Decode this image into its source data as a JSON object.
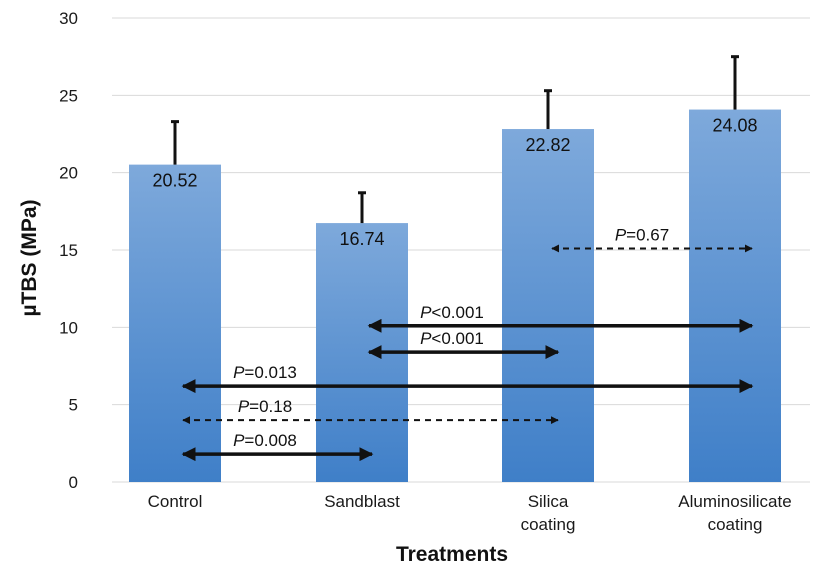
{
  "chart_data": {
    "type": "bar",
    "xlabel": "Treatments",
    "ylabel": "µTBS (MPa)",
    "ylim": [
      0,
      30
    ],
    "yticks": [
      0,
      5,
      10,
      15,
      20,
      25,
      30
    ],
    "grid": true,
    "categories": [
      [
        "Control"
      ],
      [
        "Sandblast"
      ],
      [
        "Silica",
        "coating"
      ],
      [
        "Aluminosilicate",
        "coating"
      ]
    ],
    "values": [
      20.52,
      16.74,
      22.82,
      24.08
    ],
    "value_labels": [
      "20.52",
      "16.74",
      "22.82",
      "24.08"
    ],
    "error_upper": [
      23.3,
      18.7,
      25.3,
      27.5
    ],
    "comparisons": [
      {
        "label_prefix": "P",
        "label_rest": "=0.67",
        "from": 2,
        "to": 3,
        "y": 15.1,
        "style": "dashed"
      },
      {
        "label_prefix": "P",
        "label_rest": "<0.001",
        "from": 1,
        "to": 3,
        "y": 10.1,
        "style": "solid"
      },
      {
        "label_prefix": "P",
        "label_rest": "<0.001",
        "from": 1,
        "to": 2,
        "y": 8.4,
        "style": "solid"
      },
      {
        "label_prefix": "P",
        "label_rest": "=0.013",
        "from": 0,
        "to": 3,
        "y": 6.2,
        "style": "solid"
      },
      {
        "label_prefix": "P",
        "label_rest": "=0.18",
        "from": 0,
        "to": 2,
        "y": 4.0,
        "style": "dashed"
      },
      {
        "label_prefix": "P",
        "label_rest": "=0.008",
        "from": 0,
        "to": 1,
        "y": 1.8,
        "style": "solid"
      }
    ],
    "bar_color_top": "#7ea9db",
    "bar_color_bottom": "#3f7fc8",
    "error_color": "#111111"
  }
}
